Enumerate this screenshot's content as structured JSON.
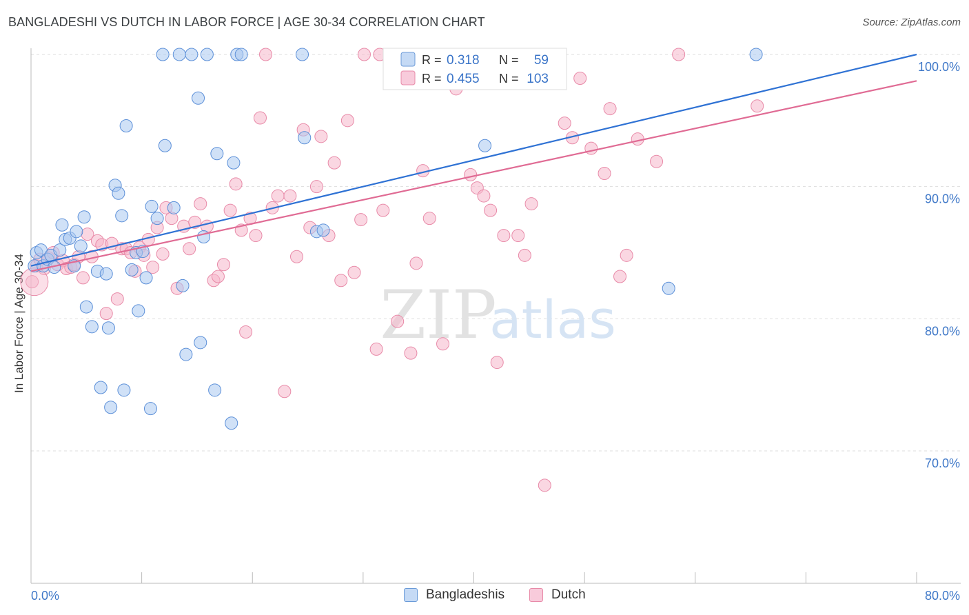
{
  "title": "BANGLADESHI VS DUTCH IN LABOR FORCE | AGE 30-34 CORRELATION CHART",
  "source": "Source: ZipAtlas.com",
  "watermark": {
    "zip": "ZIP",
    "atlas": "atlas"
  },
  "colors": {
    "blue_fill": "#aac8f0",
    "blue_stroke": "#5b8fd8",
    "blue_line": "#2f72d4",
    "pink_fill": "#f6b7cb",
    "pink_stroke": "#e88aa8",
    "pink_line": "#e06b94",
    "tick_label": "#3f78c8",
    "grid": "#dddddd"
  },
  "legend": {
    "rows": [
      {
        "r_label": "R =",
        "r_value": "0.318",
        "n_label": "N =",
        "n_value": "59"
      },
      {
        "r_label": "R =",
        "r_value": "0.455",
        "n_label": "N =",
        "n_value": "103"
      }
    ]
  },
  "bottom_legend": [
    "Bangladeshis",
    "Dutch"
  ],
  "chart_data": {
    "type": "scatter",
    "title": "BANGLADESHI VS DUTCH IN LABOR FORCE | AGE 30-34 CORRELATION CHART",
    "xlabel": "",
    "ylabel": "In Labor Force | Age 30-34",
    "xlim": [
      0,
      80
    ],
    "ylim": [
      61,
      101
    ],
    "x_tick_labels": [
      "0.0%",
      "80.0%"
    ],
    "y_ticks": [
      70,
      80,
      90,
      100
    ],
    "y_tick_labels": [
      "70.0%",
      "80.0%",
      "90.0%",
      "100.0%"
    ],
    "grid": true,
    "legend_position": "top-center",
    "series": [
      {
        "name": "Bangladeshis",
        "r": 0.318,
        "n": 59,
        "trend": {
          "x": [
            0,
            80
          ],
          "y": [
            84.0,
            100.0
          ]
        },
        "points": [
          [
            0.3,
            84.0
          ],
          [
            0.5,
            85.0
          ],
          [
            0.9,
            85.2
          ],
          [
            1.1,
            84.0
          ],
          [
            1.5,
            84.5
          ],
          [
            1.8,
            84.8
          ],
          [
            2.1,
            83.9
          ],
          [
            2.6,
            85.2
          ],
          [
            2.8,
            87.1
          ],
          [
            3.1,
            86.0
          ],
          [
            3.5,
            86.1
          ],
          [
            3.9,
            84.0
          ],
          [
            4.1,
            86.6
          ],
          [
            4.5,
            85.5
          ],
          [
            4.8,
            87.7
          ],
          [
            5.0,
            80.9
          ],
          [
            5.5,
            79.4
          ],
          [
            6.0,
            83.6
          ],
          [
            6.3,
            74.8
          ],
          [
            6.8,
            83.4
          ],
          [
            7.0,
            79.3
          ],
          [
            7.2,
            73.3
          ],
          [
            7.6,
            90.1
          ],
          [
            7.9,
            89.5
          ],
          [
            8.2,
            87.8
          ],
          [
            8.4,
            74.6
          ],
          [
            8.6,
            94.6
          ],
          [
            9.1,
            83.7
          ],
          [
            9.5,
            85.0
          ],
          [
            9.7,
            80.6
          ],
          [
            10.1,
            85.1
          ],
          [
            10.4,
            83.1
          ],
          [
            10.8,
            73.2
          ],
          [
            10.9,
            88.5
          ],
          [
            11.4,
            87.6
          ],
          [
            11.9,
            100.0
          ],
          [
            12.1,
            93.1
          ],
          [
            12.9,
            88.4
          ],
          [
            13.4,
            100.0
          ],
          [
            13.7,
            82.5
          ],
          [
            14.0,
            77.3
          ],
          [
            14.5,
            100.0
          ],
          [
            15.1,
            96.7
          ],
          [
            15.3,
            78.2
          ],
          [
            15.6,
            86.2
          ],
          [
            15.9,
            100.0
          ],
          [
            16.6,
            74.6
          ],
          [
            16.8,
            92.5
          ],
          [
            18.1,
            72.1
          ],
          [
            18.3,
            91.8
          ],
          [
            18.6,
            100.0
          ],
          [
            19.0,
            100.0
          ],
          [
            24.5,
            100.0
          ],
          [
            24.7,
            93.7
          ],
          [
            25.8,
            86.6
          ],
          [
            26.4,
            86.7
          ],
          [
            41.0,
            93.1
          ],
          [
            57.6,
            82.3
          ],
          [
            65.5,
            100.0
          ]
        ]
      },
      {
        "name": "Dutch",
        "r": 0.455,
        "n": 103,
        "trend": {
          "x": [
            0,
            80
          ],
          "y": [
            83.6,
            98.0
          ]
        },
        "points": [
          [
            0.1,
            82.8
          ],
          [
            0.5,
            84.0
          ],
          [
            0.8,
            84.5
          ],
          [
            1.2,
            83.8
          ],
          [
            1.6,
            84.6
          ],
          [
            2.0,
            85.0
          ],
          [
            2.4,
            84.1
          ],
          [
            2.9,
            84.4
          ],
          [
            3.2,
            83.8
          ],
          [
            3.6,
            83.9
          ],
          [
            3.9,
            84.1
          ],
          [
            4.3,
            84.7
          ],
          [
            4.7,
            83.1
          ],
          [
            5.1,
            86.4
          ],
          [
            5.5,
            84.7
          ],
          [
            6.0,
            85.9
          ],
          [
            6.4,
            85.6
          ],
          [
            6.8,
            80.4
          ],
          [
            7.3,
            85.7
          ],
          [
            7.8,
            81.5
          ],
          [
            8.2,
            85.3
          ],
          [
            8.6,
            85.3
          ],
          [
            9.0,
            85.0
          ],
          [
            9.4,
            83.6
          ],
          [
            9.8,
            85.4
          ],
          [
            10.2,
            84.8
          ],
          [
            10.6,
            86.0
          ],
          [
            11.0,
            83.9
          ],
          [
            11.4,
            86.9
          ],
          [
            11.9,
            84.9
          ],
          [
            12.2,
            88.4
          ],
          [
            12.7,
            87.6
          ],
          [
            13.2,
            82.3
          ],
          [
            13.8,
            87.0
          ],
          [
            14.3,
            85.3
          ],
          [
            14.8,
            87.3
          ],
          [
            15.3,
            88.7
          ],
          [
            15.9,
            87.0
          ],
          [
            16.5,
            82.9
          ],
          [
            16.9,
            83.2
          ],
          [
            17.4,
            84.1
          ],
          [
            18.0,
            88.2
          ],
          [
            18.5,
            90.2
          ],
          [
            19.0,
            86.7
          ],
          [
            19.4,
            79.0
          ],
          [
            19.8,
            87.6
          ],
          [
            20.3,
            86.3
          ],
          [
            20.7,
            95.2
          ],
          [
            21.2,
            100.0
          ],
          [
            21.8,
            88.4
          ],
          [
            22.3,
            89.3
          ],
          [
            22.9,
            74.5
          ],
          [
            23.4,
            89.3
          ],
          [
            24.0,
            84.7
          ],
          [
            24.6,
            94.3
          ],
          [
            25.2,
            86.9
          ],
          [
            25.8,
            90.0
          ],
          [
            26.2,
            93.8
          ],
          [
            26.9,
            86.3
          ],
          [
            27.4,
            91.8
          ],
          [
            28.0,
            82.9
          ],
          [
            28.6,
            95.0
          ],
          [
            29.2,
            83.5
          ],
          [
            29.8,
            87.5
          ],
          [
            30.1,
            100.0
          ],
          [
            31.2,
            77.7
          ],
          [
            31.5,
            100.0
          ],
          [
            31.8,
            88.2
          ],
          [
            32.5,
            100.0
          ],
          [
            33.1,
            79.8
          ],
          [
            33.6,
            100.0
          ],
          [
            34.3,
            77.4
          ],
          [
            34.8,
            84.2
          ],
          [
            35.4,
            91.2
          ],
          [
            36.0,
            87.6
          ],
          [
            36.5,
            100.0
          ],
          [
            37.2,
            78.1
          ],
          [
            37.8,
            100.0
          ],
          [
            38.4,
            97.4
          ],
          [
            39.1,
            100.0
          ],
          [
            39.7,
            90.9
          ],
          [
            40.3,
            89.9
          ],
          [
            40.9,
            89.3
          ],
          [
            41.5,
            88.2
          ],
          [
            42.1,
            76.7
          ],
          [
            42.7,
            86.3
          ],
          [
            43.4,
            100.0
          ],
          [
            44.0,
            86.3
          ],
          [
            44.6,
            84.8
          ],
          [
            45.2,
            88.7
          ],
          [
            46.4,
            67.4
          ],
          [
            48.2,
            94.8
          ],
          [
            48.9,
            93.7
          ],
          [
            49.6,
            98.2
          ],
          [
            50.6,
            92.9
          ],
          [
            51.8,
            91.0
          ],
          [
            52.3,
            95.9
          ],
          [
            53.2,
            83.2
          ],
          [
            53.8,
            84.8
          ],
          [
            54.8,
            93.6
          ],
          [
            56.5,
            91.9
          ],
          [
            58.5,
            100.0
          ],
          [
            65.6,
            96.1
          ]
        ]
      }
    ]
  }
}
